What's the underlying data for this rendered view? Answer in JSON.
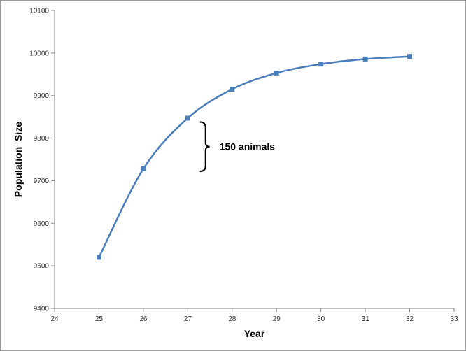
{
  "chart_data": {
    "type": "line",
    "title": "",
    "xlabel": "Year",
    "ylabel": "Population  Size",
    "xlim": [
      24,
      33
    ],
    "ylim": [
      9400,
      10100
    ],
    "xticks": [
      24,
      25,
      26,
      27,
      28,
      29,
      30,
      31,
      32,
      33
    ],
    "yticks": [
      9400,
      9500,
      9600,
      9700,
      9800,
      9900,
      10000,
      10100
    ],
    "grid": false,
    "legend": "none",
    "series": [
      {
        "color": "#4a7ebb",
        "marker": "square",
        "smooth": true,
        "points": [
          {
            "x": 25,
            "y": 9520
          },
          {
            "x": 26,
            "y": 9728
          },
          {
            "x": 27,
            "y": 9847
          },
          {
            "x": 28,
            "y": 9915
          },
          {
            "x": 29,
            "y": 9953
          },
          {
            "x": 30,
            "y": 9974
          },
          {
            "x": 31,
            "y": 9986
          },
          {
            "x": 32,
            "y": 9992
          }
        ]
      }
    ],
    "annotation": {
      "text": "150 animals",
      "x": 27.4,
      "y_range": [
        9722,
        9838
      ]
    }
  }
}
